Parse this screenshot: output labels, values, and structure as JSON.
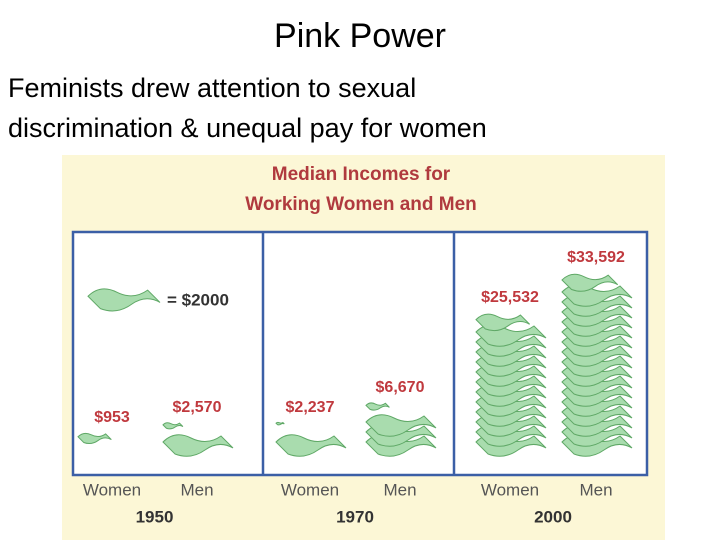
{
  "slide": {
    "title": "Pink Power",
    "text": [
      "Feminists drew attention to sexual",
      "discrimination & unequal pay for women"
    ]
  },
  "chart_data": {
    "type": "pictograph",
    "title": [
      "Median Incomes for",
      "Working Women and Men"
    ],
    "categories": [
      "1950",
      "1970",
      "2000"
    ],
    "unit": {
      "value": 2000,
      "label": "= $2000"
    },
    "series": [
      {
        "name": "Women",
        "color": "#a9dcae",
        "values": [
          953,
          2237,
          25532
        ],
        "value_labels": [
          "$953",
          "$2,237",
          "$25,532"
        ]
      },
      {
        "name": "Men",
        "color": "#a9dcae",
        "values": [
          2570,
          6670,
          33592
        ],
        "value_labels": [
          "$2,570",
          "$6,670",
          "$33,592"
        ]
      }
    ]
  }
}
